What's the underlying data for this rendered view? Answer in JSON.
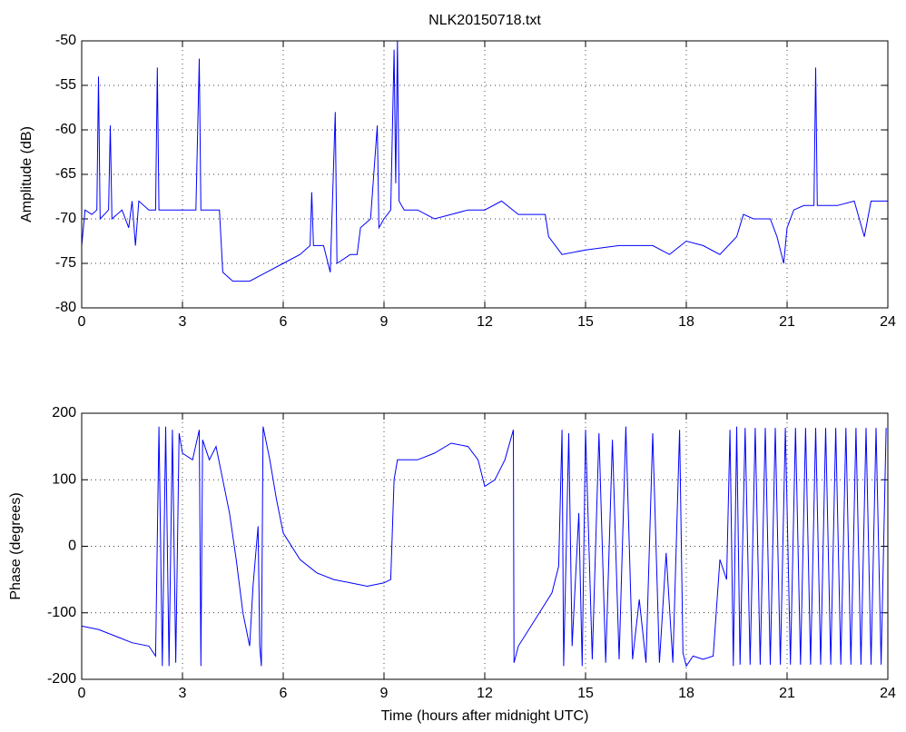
{
  "chart_data": [
    {
      "type": "line",
      "title": "NLK20150718.txt",
      "ylabel": "Amplitude (dB)",
      "xlim": [
        0,
        24
      ],
      "xticks": [
        0,
        3,
        6,
        9,
        12,
        15,
        18,
        21,
        24
      ],
      "ylim": [
        -80,
        -50
      ],
      "yticks": [
        -80,
        -75,
        -70,
        -65,
        -60,
        -55,
        -50
      ],
      "grid": true,
      "x": [
        0,
        0.1,
        0.3,
        0.45,
        0.5,
        0.55,
        0.8,
        0.85,
        0.9,
        1.2,
        1.4,
        1.5,
        1.6,
        1.7,
        2.0,
        2.2,
        2.25,
        2.3,
        2.6,
        3.0,
        3.4,
        3.5,
        3.55,
        3.8,
        4.1,
        4.2,
        4.5,
        5.0,
        5.5,
        6.0,
        6.5,
        6.8,
        6.85,
        6.9,
        7.2,
        7.4,
        7.55,
        7.6,
        8.0,
        8.2,
        8.3,
        8.6,
        8.8,
        8.85,
        9.0,
        9.2,
        9.3,
        9.35,
        9.4,
        9.45,
        9.6,
        10,
        10.5,
        11,
        11.5,
        12,
        12.5,
        13,
        13.5,
        13.8,
        13.9,
        14.3,
        15,
        16,
        17,
        17.5,
        18,
        18.5,
        19,
        19.5,
        19.7,
        20,
        20.5,
        20.7,
        20.9,
        21.0,
        21.2,
        21.5,
        21.8,
        21.85,
        21.9,
        22.5,
        23,
        23.3,
        23.5,
        24
      ],
      "series": [
        {
          "color": "#0000ff",
          "values": [
            -73,
            -69,
            -69.5,
            -69,
            -54,
            -70,
            -69,
            -59.5,
            -70,
            -69,
            -71,
            -68,
            -73,
            -68,
            -69,
            -69,
            -53,
            -69,
            -69,
            -69,
            -69,
            -52,
            -69,
            -69,
            -69,
            -76,
            -77,
            -77,
            -76,
            -75,
            -74,
            -73,
            -67,
            -73,
            -73,
            -76,
            -58,
            -75,
            -74,
            -74,
            -71,
            -70,
            -59.5,
            -71,
            -70,
            -69,
            -51,
            -66,
            -50,
            -68,
            -69,
            -69,
            -70,
            -69.5,
            -69,
            -69,
            -68,
            -69.5,
            -69.5,
            -69.5,
            -72,
            -74,
            -73.5,
            -73,
            -73,
            -74,
            -72.5,
            -73,
            -74,
            -72,
            -69.5,
            -70,
            -70,
            -72,
            -75,
            -71,
            -69,
            -68.5,
            -68.5,
            -53,
            -68.5,
            -68.5,
            -68,
            -72,
            -68,
            -68
          ]
        }
      ]
    },
    {
      "type": "line",
      "ylabel": "Phase (degrees)",
      "xlabel": "Time (hours after midnight UTC)",
      "xlim": [
        0,
        24
      ],
      "xticks": [
        0,
        3,
        6,
        9,
        12,
        15,
        18,
        21,
        24
      ],
      "ylim": [
        -200,
        200
      ],
      "yticks": [
        -200,
        -100,
        0,
        100,
        200
      ],
      "grid": true,
      "x": [
        0,
        0.5,
        1,
        1.5,
        2,
        2.2,
        2.3,
        2.4,
        2.5,
        2.6,
        2.7,
        2.8,
        2.9,
        3.0,
        3.3,
        3.5,
        3.55,
        3.6,
        3.8,
        4.0,
        4.2,
        4.4,
        4.6,
        4.8,
        5.0,
        5.1,
        5.2,
        5.25,
        5.3,
        5.35,
        5.4,
        5.6,
        5.8,
        6,
        6.5,
        7,
        7.5,
        8,
        8.5,
        9,
        9.2,
        9.3,
        9.4,
        10,
        10.5,
        11,
        11.5,
        11.8,
        12,
        12.3,
        12.6,
        12.85,
        12.87,
        13,
        13.5,
        14,
        14.2,
        14.3,
        14.35,
        14.5,
        14.6,
        14.8,
        14.9,
        15,
        15.2,
        15.4,
        15.6,
        15.8,
        16,
        16.2,
        16.4,
        16.6,
        16.8,
        17,
        17.2,
        17.4,
        17.6,
        17.8,
        17.9,
        18,
        18.2,
        18.5,
        18.8,
        19,
        19.2,
        19.3,
        19.4,
        19.5,
        19.6,
        19.75,
        19.9,
        20.05,
        20.2,
        20.35,
        20.5,
        20.65,
        20.8,
        20.95,
        21.1,
        21.25,
        21.4,
        21.55,
        21.7,
        21.85,
        22.0,
        22.15,
        22.3,
        22.45,
        22.6,
        22.75,
        22.9,
        23.05,
        23.2,
        23.35,
        23.5,
        23.65,
        23.8,
        23.95
      ],
      "series": [
        {
          "color": "#0000ff",
          "values": [
            -120,
            -125,
            -135,
            -145,
            -150,
            -165,
            180,
            -180,
            180,
            -180,
            175,
            -175,
            170,
            140,
            130,
            175,
            -180,
            160,
            130,
            150,
            100,
            50,
            -20,
            -100,
            -150,
            -60,
            0,
            30,
            -150,
            -180,
            180,
            130,
            70,
            20,
            -20,
            -40,
            -50,
            -55,
            -60,
            -55,
            -50,
            100,
            130,
            130,
            140,
            155,
            150,
            130,
            90,
            100,
            130,
            175,
            -175,
            -150,
            -110,
            -70,
            -30,
            175,
            -180,
            170,
            -150,
            50,
            -180,
            175,
            -170,
            170,
            -175,
            160,
            -170,
            180,
            -170,
            -80,
            -175,
            170,
            -175,
            -10,
            -175,
            175,
            -160,
            -180,
            -165,
            -170,
            -165,
            -20,
            -50,
            175,
            -180,
            180,
            -178,
            178,
            -178,
            178,
            -178,
            178,
            -178,
            178,
            -178,
            178,
            -178,
            178,
            -178,
            178,
            -178,
            178,
            -178,
            178,
            -178,
            178,
            -178,
            178,
            -178,
            178,
            -178,
            178,
            -178,
            178,
            -178,
            178
          ]
        }
      ]
    }
  ]
}
